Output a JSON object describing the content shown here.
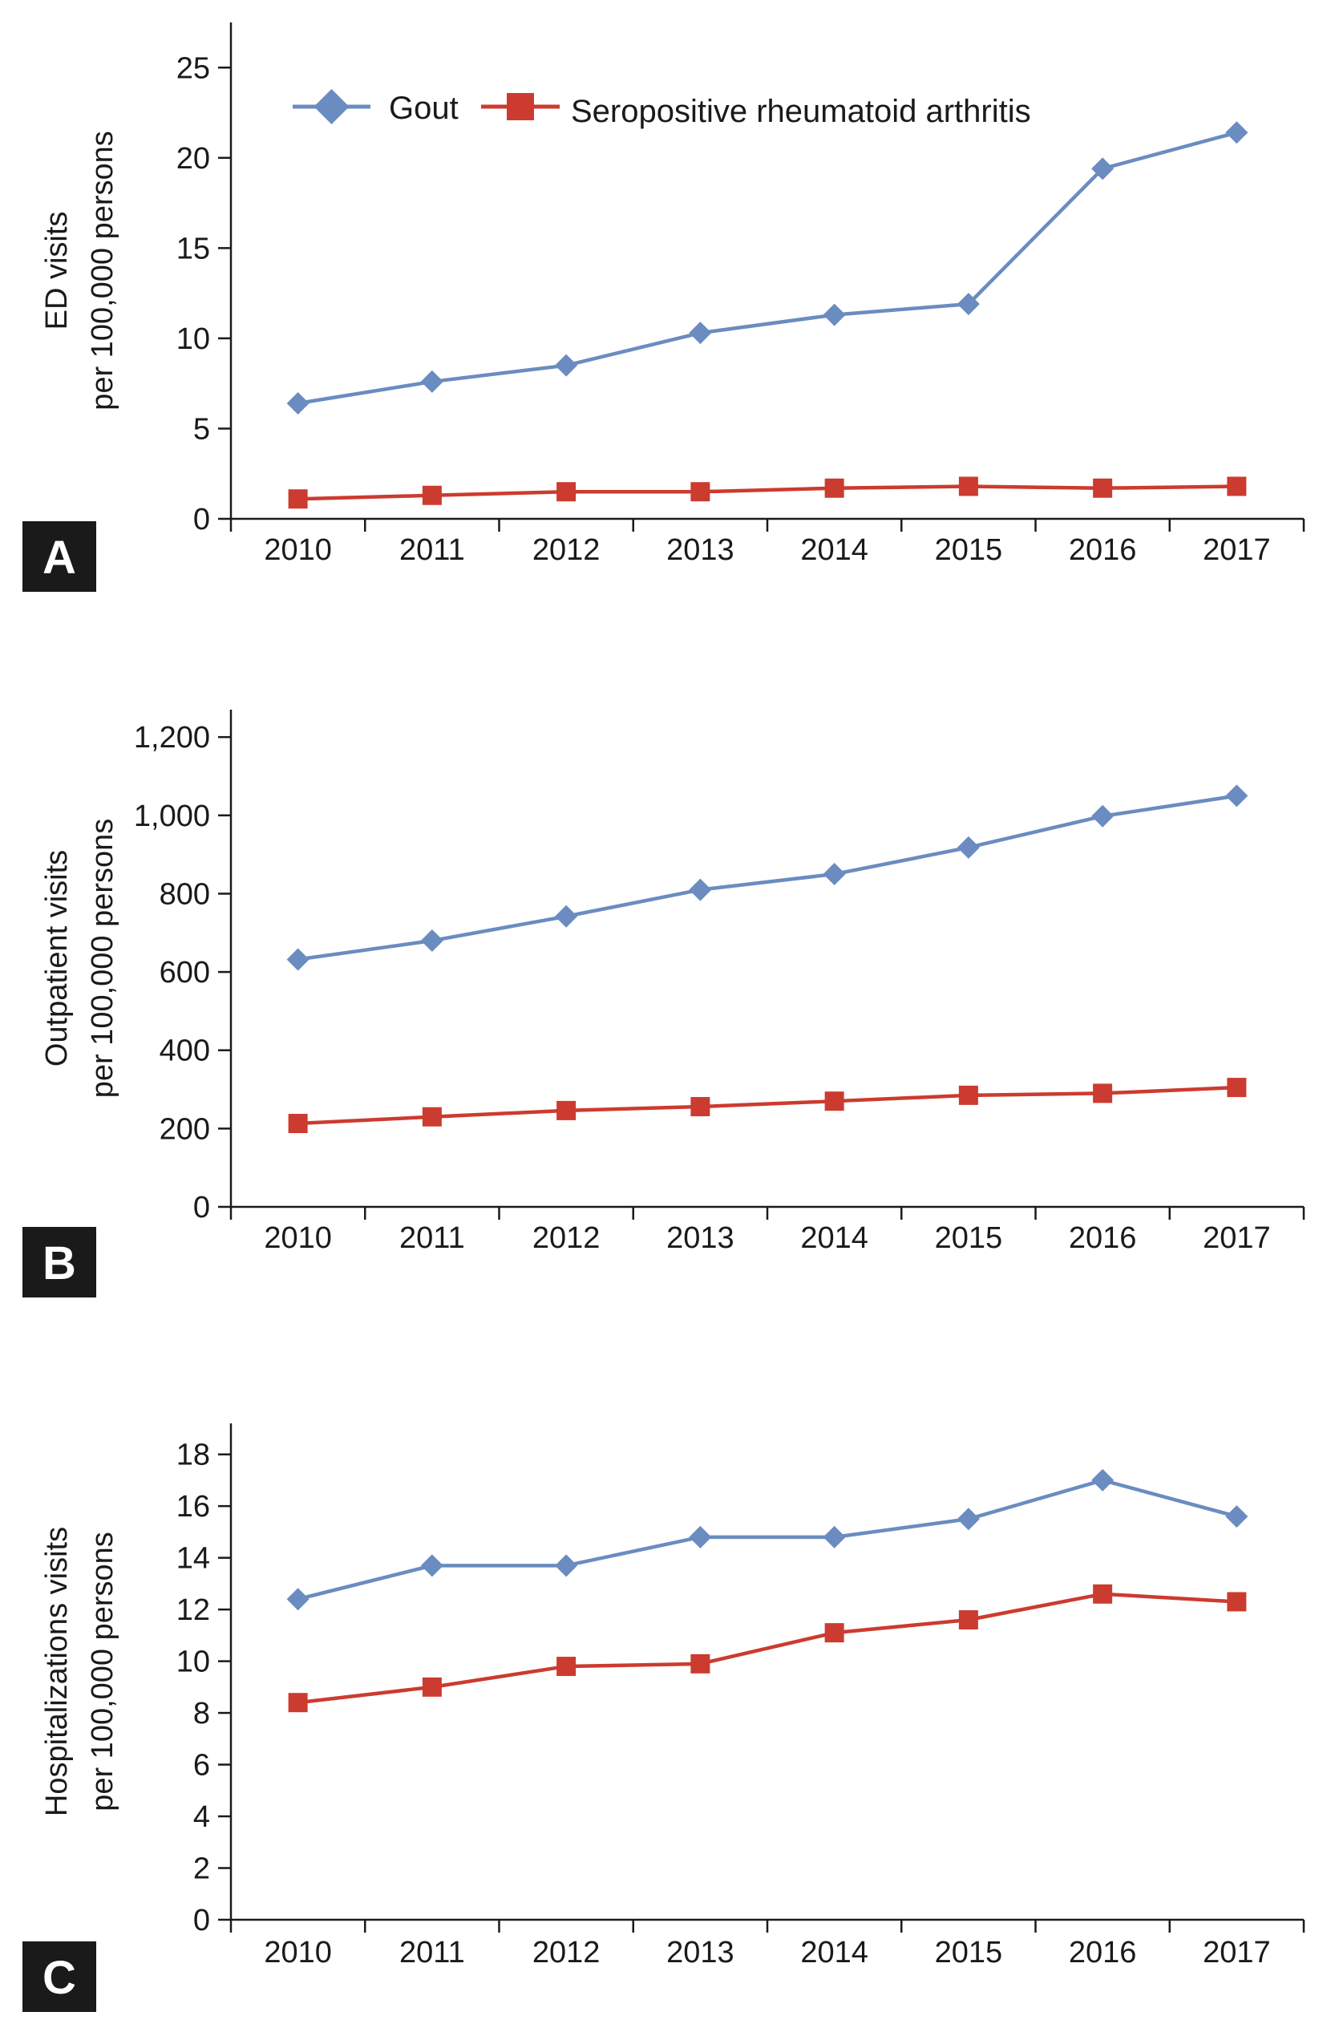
{
  "legend": {
    "series": [
      {
        "name": "Gout",
        "color": "#6a8cc0",
        "marker": "diamond"
      },
      {
        "name": "Seropositive rheumatoid arthritis",
        "color": "#cc3b2f",
        "marker": "square"
      }
    ]
  },
  "chart_data": [
    {
      "type": "line",
      "panel_label": "A",
      "ylabel_line1": "ED visits",
      "ylabel_line2": "per 100,000 persons",
      "xlabel": "",
      "categories": [
        "2010",
        "2011",
        "2012",
        "2013",
        "2014",
        "2015",
        "2016",
        "2017"
      ],
      "ylim": [
        0,
        27.5
      ],
      "yticks": [
        0,
        5,
        10,
        15,
        20,
        25
      ],
      "ytick_labels": [
        "0",
        "5",
        "10",
        "15",
        "20",
        "25"
      ],
      "series": [
        {
          "name": "Gout",
          "values": [
            6.4,
            7.6,
            8.5,
            10.3,
            11.3,
            11.9,
            19.4,
            21.4
          ]
        },
        {
          "name": "Seropositive rheumatoid arthritis",
          "values": [
            1.1,
            1.3,
            1.5,
            1.5,
            1.7,
            1.8,
            1.7,
            1.8
          ]
        }
      ]
    },
    {
      "type": "line",
      "panel_label": "B",
      "ylabel_line1": "Outpatient visits",
      "ylabel_line2": "per 100,000 persons",
      "xlabel": "",
      "categories": [
        "2010",
        "2011",
        "2012",
        "2013",
        "2014",
        "2015",
        "2016",
        "2017"
      ],
      "ylim": [
        0,
        1270
      ],
      "yticks": [
        0,
        200,
        400,
        600,
        800,
        1000,
        1200
      ],
      "ytick_labels": [
        "0",
        "200",
        "400",
        "600",
        "800",
        "1,000",
        "1,200"
      ],
      "series": [
        {
          "name": "Gout",
          "values": [
            632,
            680,
            742,
            810,
            850,
            918,
            998,
            1050
          ]
        },
        {
          "name": "Seropositive rheumatoid arthritis",
          "values": [
            213,
            230,
            246,
            256,
            270,
            285,
            290,
            305
          ]
        }
      ]
    },
    {
      "type": "line",
      "panel_label": "C",
      "ylabel_line1": "Hospitalizations visits",
      "ylabel_line2": "per 100,000 persons",
      "xlabel": "",
      "categories": [
        "2010",
        "2011",
        "2012",
        "2013",
        "2014",
        "2015",
        "2016",
        "2017"
      ],
      "ylim": [
        0,
        19.2
      ],
      "yticks": [
        0,
        2,
        4,
        6,
        8,
        10,
        12,
        14,
        16,
        18
      ],
      "ytick_labels": [
        "0",
        "2",
        "4",
        "6",
        "8",
        "10",
        "12",
        "14",
        "16",
        "18"
      ],
      "series": [
        {
          "name": "Gout",
          "values": [
            12.4,
            13.7,
            13.7,
            14.8,
            14.8,
            15.5,
            17.0,
            15.6
          ]
        },
        {
          "name": "Seropositive rheumatoid arthritis",
          "values": [
            8.4,
            9.0,
            9.8,
            9.9,
            11.1,
            11.6,
            12.6,
            12.3
          ]
        }
      ]
    }
  ]
}
